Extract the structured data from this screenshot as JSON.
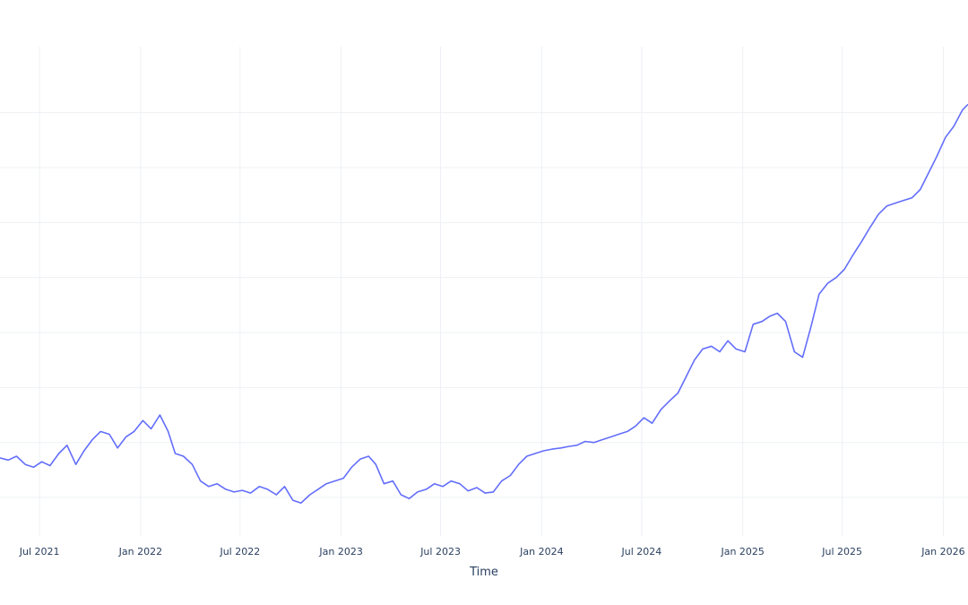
{
  "chart_data": {
    "type": "line",
    "title": "",
    "xlabel": "Time",
    "ylabel": "",
    "x_range": [
      "2021-04-20",
      "2026-02-15"
    ],
    "y_range": [
      23,
      112
    ],
    "grid": true,
    "series_color": "#636efa",
    "x_ticks": [
      {
        "date": "2021-07-01",
        "label": "Jul 2021"
      },
      {
        "date": "2022-01-01",
        "label": "Jan 2022"
      },
      {
        "date": "2022-07-01",
        "label": "Jul 2022"
      },
      {
        "date": "2023-01-01",
        "label": "Jan 2023"
      },
      {
        "date": "2023-07-01",
        "label": "Jul 2023"
      },
      {
        "date": "2024-01-01",
        "label": "Jan 2024"
      },
      {
        "date": "2024-07-01",
        "label": "Jul 2024"
      },
      {
        "date": "2025-01-01",
        "label": "Jan 2025"
      },
      {
        "date": "2025-07-01",
        "label": "Jul 2025"
      },
      {
        "date": "2026-01-01",
        "label": "Jan 2026"
      }
    ],
    "y_gridlines": [
      30,
      40,
      50,
      60,
      70,
      80,
      90,
      100
    ],
    "series": [
      {
        "x": [
          "2021-04-20",
          "2021-05-05",
          "2021-05-20",
          "2021-06-05",
          "2021-06-20",
          "2021-07-05",
          "2021-07-20",
          "2021-08-05",
          "2021-08-20",
          "2021-09-05",
          "2021-09-20",
          "2021-10-05",
          "2021-10-20",
          "2021-11-05",
          "2021-11-20",
          "2021-12-05",
          "2021-12-20",
          "2022-01-05",
          "2022-01-20",
          "2022-02-05",
          "2022-02-20",
          "2022-03-05",
          "2022-03-20",
          "2022-04-05",
          "2022-04-20",
          "2022-05-05",
          "2022-05-20",
          "2022-06-05",
          "2022-06-20",
          "2022-07-05",
          "2022-07-20",
          "2022-08-05",
          "2022-08-20",
          "2022-09-05",
          "2022-09-20",
          "2022-10-05",
          "2022-10-20",
          "2022-11-05",
          "2022-11-20",
          "2022-12-05",
          "2022-12-20",
          "2023-01-05",
          "2023-01-20",
          "2023-02-05",
          "2023-02-20",
          "2023-03-05",
          "2023-03-20",
          "2023-04-05",
          "2023-04-20",
          "2023-05-05",
          "2023-05-20",
          "2023-06-05",
          "2023-06-20",
          "2023-07-05",
          "2023-07-20",
          "2023-08-05",
          "2023-08-20",
          "2023-09-05",
          "2023-09-20",
          "2023-10-05",
          "2023-10-20",
          "2023-11-05",
          "2023-11-20",
          "2023-12-05",
          "2023-12-20",
          "2024-01-05",
          "2024-01-20",
          "2024-02-05",
          "2024-02-20",
          "2024-03-05",
          "2024-03-20",
          "2024-04-05",
          "2024-04-20",
          "2024-05-05",
          "2024-05-20",
          "2024-06-05",
          "2024-06-20",
          "2024-07-05",
          "2024-07-20",
          "2024-08-05",
          "2024-08-20",
          "2024-09-05",
          "2024-09-20",
          "2024-10-05",
          "2024-10-20",
          "2024-11-05",
          "2024-11-20",
          "2024-12-05",
          "2024-12-20",
          "2025-01-05",
          "2025-01-20",
          "2025-02-05",
          "2025-02-20",
          "2025-03-05",
          "2025-03-20",
          "2025-04-05",
          "2025-04-20",
          "2025-05-05",
          "2025-05-20",
          "2025-06-05",
          "2025-06-20",
          "2025-07-05",
          "2025-07-20",
          "2025-08-05",
          "2025-08-20",
          "2025-09-05",
          "2025-09-20",
          "2025-10-05",
          "2025-10-20",
          "2025-11-05",
          "2025-11-20",
          "2025-12-05",
          "2025-12-20",
          "2026-01-05",
          "2026-01-20",
          "2026-02-05",
          "2026-02-15"
        ],
        "values": [
          37.2,
          36.8,
          37.5,
          36.0,
          35.5,
          36.5,
          35.8,
          38.0,
          39.5,
          36.0,
          38.5,
          40.5,
          42.0,
          41.5,
          39.0,
          41.0,
          42.0,
          44.0,
          42.5,
          45.0,
          42.0,
          38.0,
          37.5,
          36.0,
          33.0,
          32.0,
          32.5,
          31.5,
          31.0,
          31.3,
          30.8,
          32.0,
          31.5,
          30.5,
          32.0,
          29.5,
          29.0,
          30.5,
          31.5,
          32.5,
          33.0,
          33.5,
          35.5,
          37.0,
          37.5,
          36.0,
          32.5,
          33.0,
          30.5,
          29.8,
          31.0,
          31.5,
          32.5,
          32.0,
          33.0,
          32.5,
          31.2,
          31.8,
          30.8,
          31.0,
          33.0,
          34.0,
          36.0,
          37.5,
          38.0,
          38.5,
          38.8,
          39.0,
          39.3,
          39.5,
          40.2,
          40.0,
          40.5,
          41.0,
          41.5,
          42.0,
          43.0,
          44.5,
          43.5,
          46.0,
          47.5,
          49.0,
          52.0,
          55.0,
          57.0,
          57.5,
          56.5,
          58.5,
          57.0,
          56.5,
          61.5,
          62.0,
          63.0,
          63.5,
          62.0,
          56.5,
          55.5,
          61.0,
          67.0,
          69.0,
          70.0,
          71.5,
          74.0,
          76.5,
          79.0,
          81.5,
          83.0,
          83.5,
          84.0,
          84.5,
          86.0,
          89.0,
          92.0,
          95.5,
          97.5,
          100.5,
          101.5
        ]
      }
    ]
  }
}
